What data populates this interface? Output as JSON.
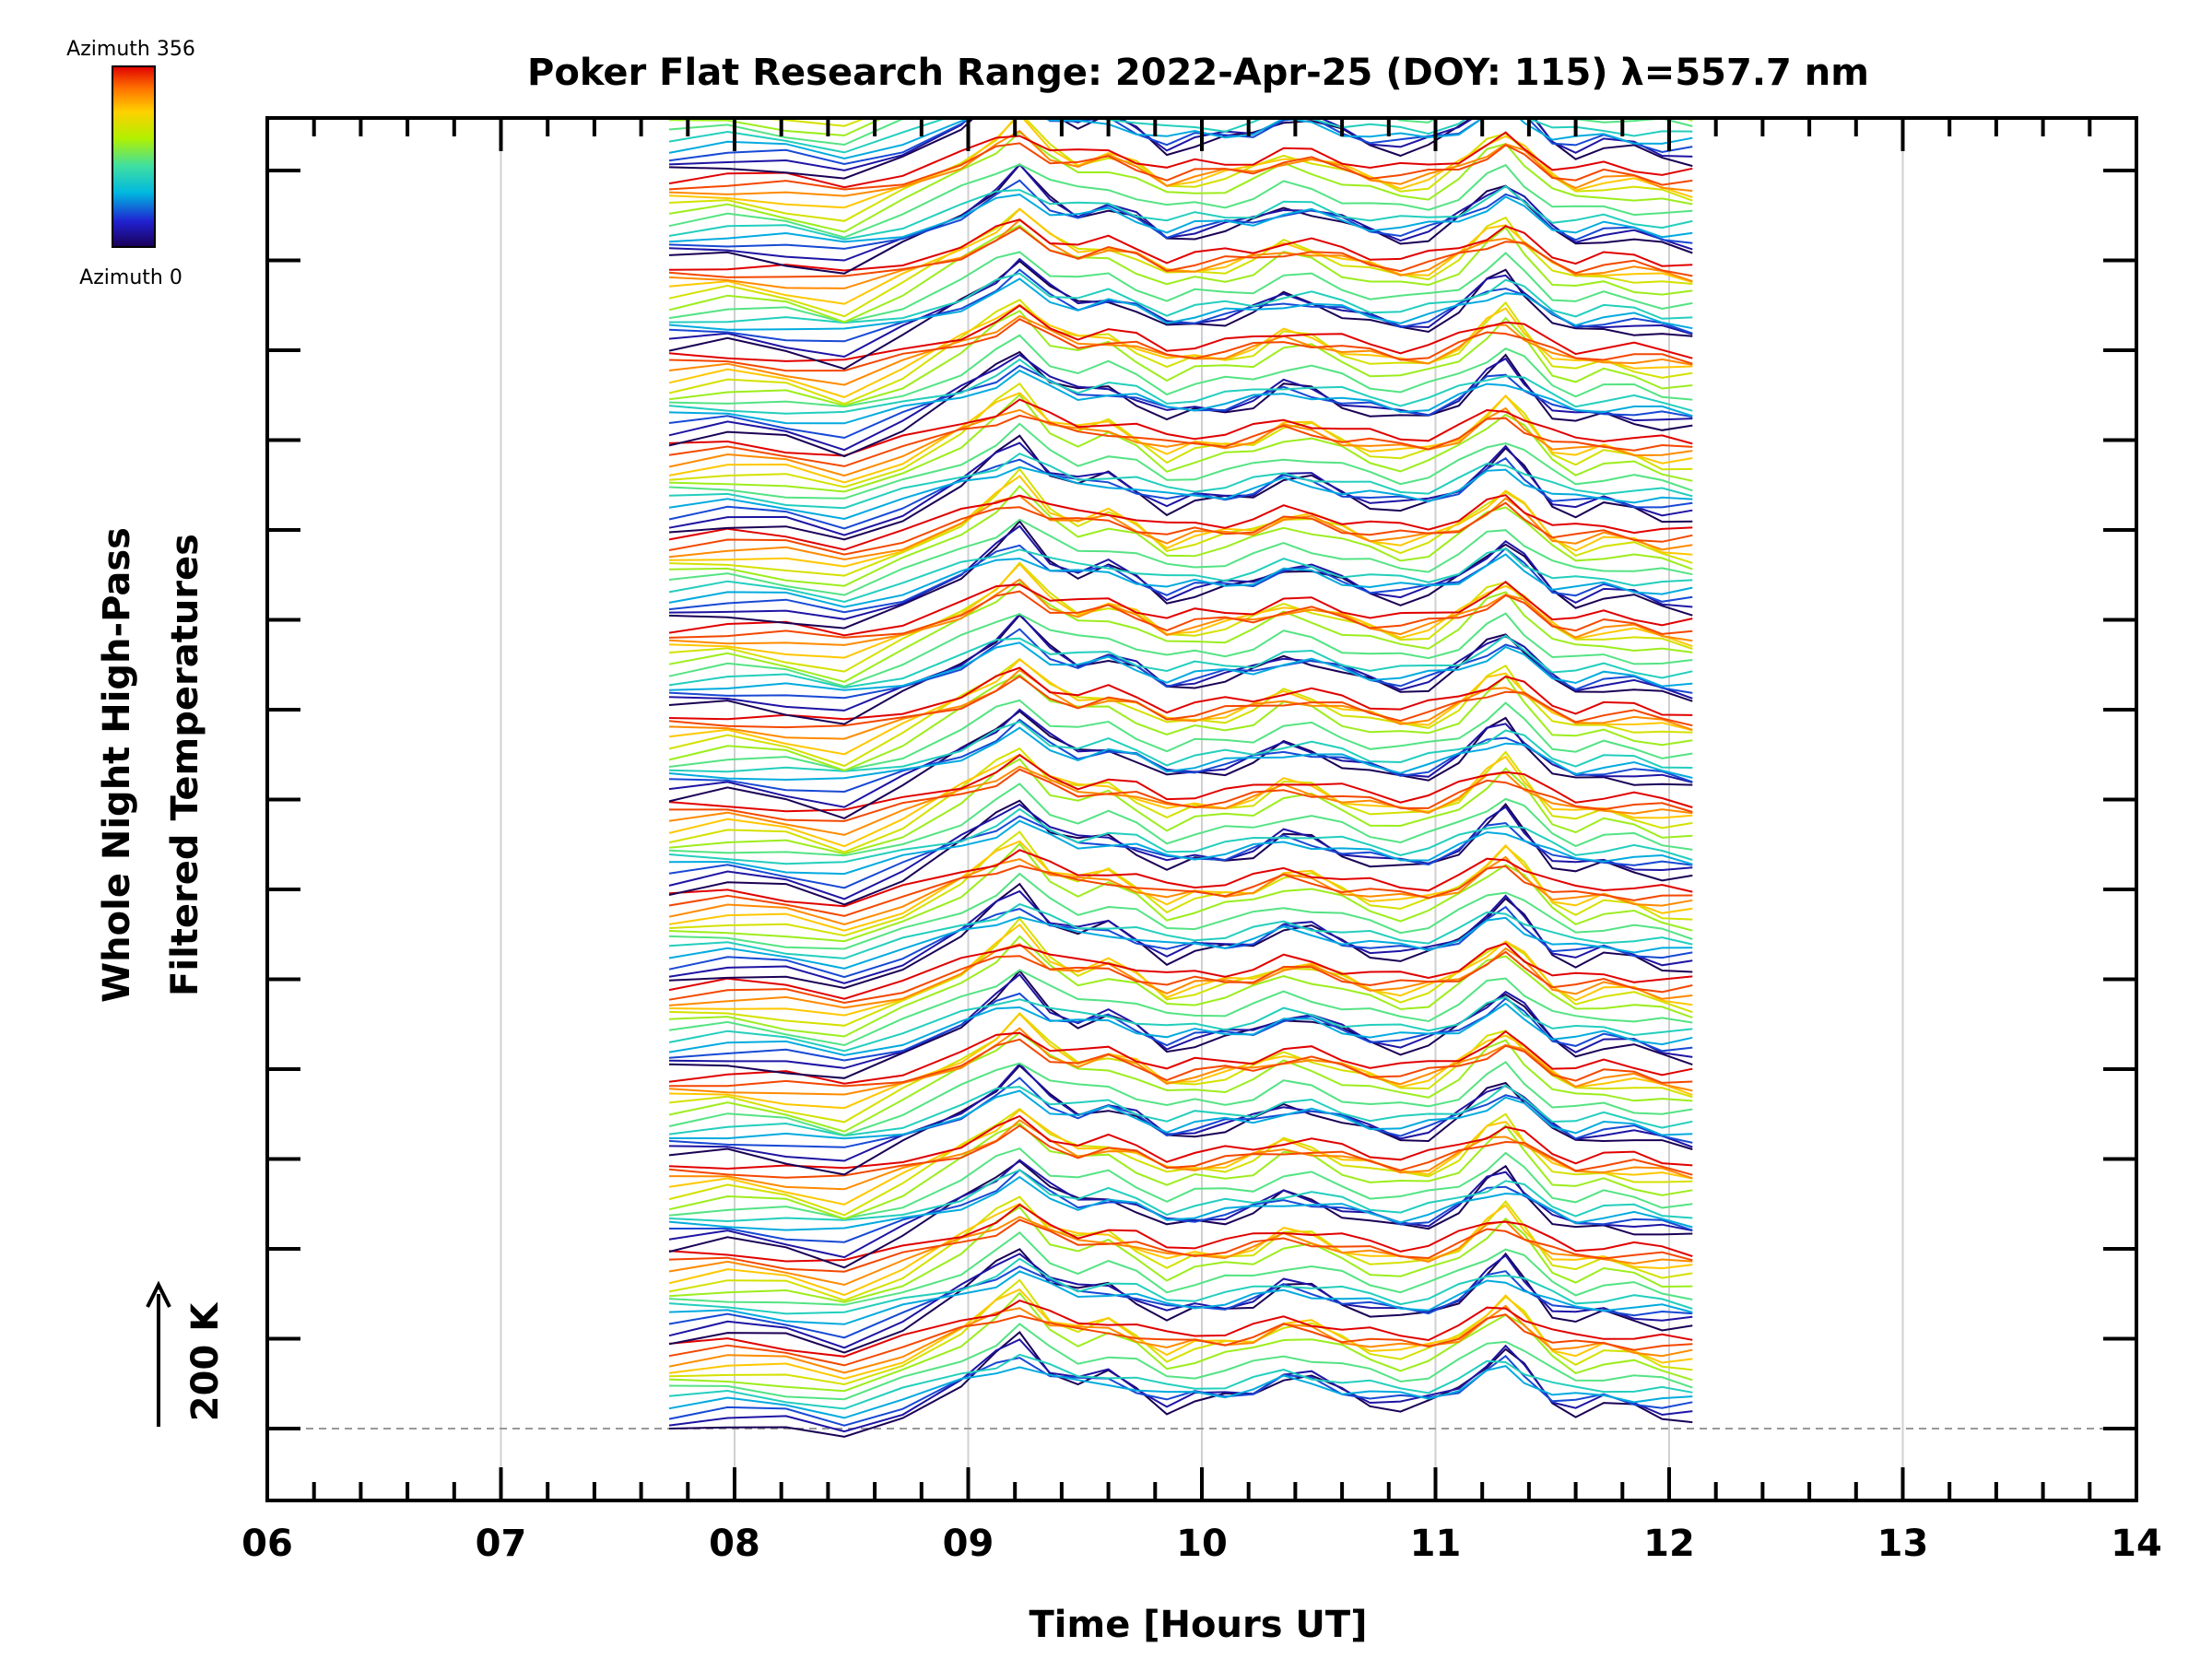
{
  "chart_data": {
    "type": "line",
    "title": "Poker Flat Research Range: 2022-Apr-25 (DOY: 115) λ=557.7 nm",
    "xlabel": "Time [Hours UT]",
    "ylabel_line1": "Whole Night High-Pass",
    "ylabel_line2": "Filtered Temperatures",
    "x_ticks": [
      "06",
      "07",
      "08",
      "09",
      "10",
      "11",
      "12",
      "13",
      "14"
    ],
    "xlim": [
      6,
      14
    ],
    "scale_bar_label": "200 K",
    "colorbar": {
      "top_label": "Azimuth 356",
      "bottom_label": "Azimuth 0",
      "colormap": "rainbow",
      "colors": [
        "#1a0055",
        "#2020d0",
        "#00b8e0",
        "#40e0a0",
        "#b0f000",
        "#ffd000",
        "#ff7000",
        "#e00000"
      ]
    },
    "stacked_panels": 15,
    "series_per_panel": 12,
    "grid": "vertical",
    "baseline_dashed": true,
    "time_points_hours": [
      7.72,
      7.97,
      8.22,
      8.47,
      8.72,
      8.97,
      9.12,
      9.22,
      9.35,
      9.47,
      9.6,
      9.72,
      9.85,
      9.97,
      10.1,
      10.22,
      10.35,
      10.47,
      10.6,
      10.72,
      10.85,
      10.97,
      11.1,
      11.22,
      11.3,
      11.38,
      11.5,
      11.6,
      11.72,
      11.85,
      11.97,
      12.1
    ],
    "profile_shape_K": [
      0,
      10,
      0,
      -20,
      20,
      70,
      110,
      140,
      90,
      70,
      80,
      60,
      30,
      40,
      45,
      55,
      80,
      75,
      55,
      40,
      30,
      35,
      60,
      100,
      120,
      90,
      40,
      25,
      35,
      30,
      20,
      15
    ]
  }
}
